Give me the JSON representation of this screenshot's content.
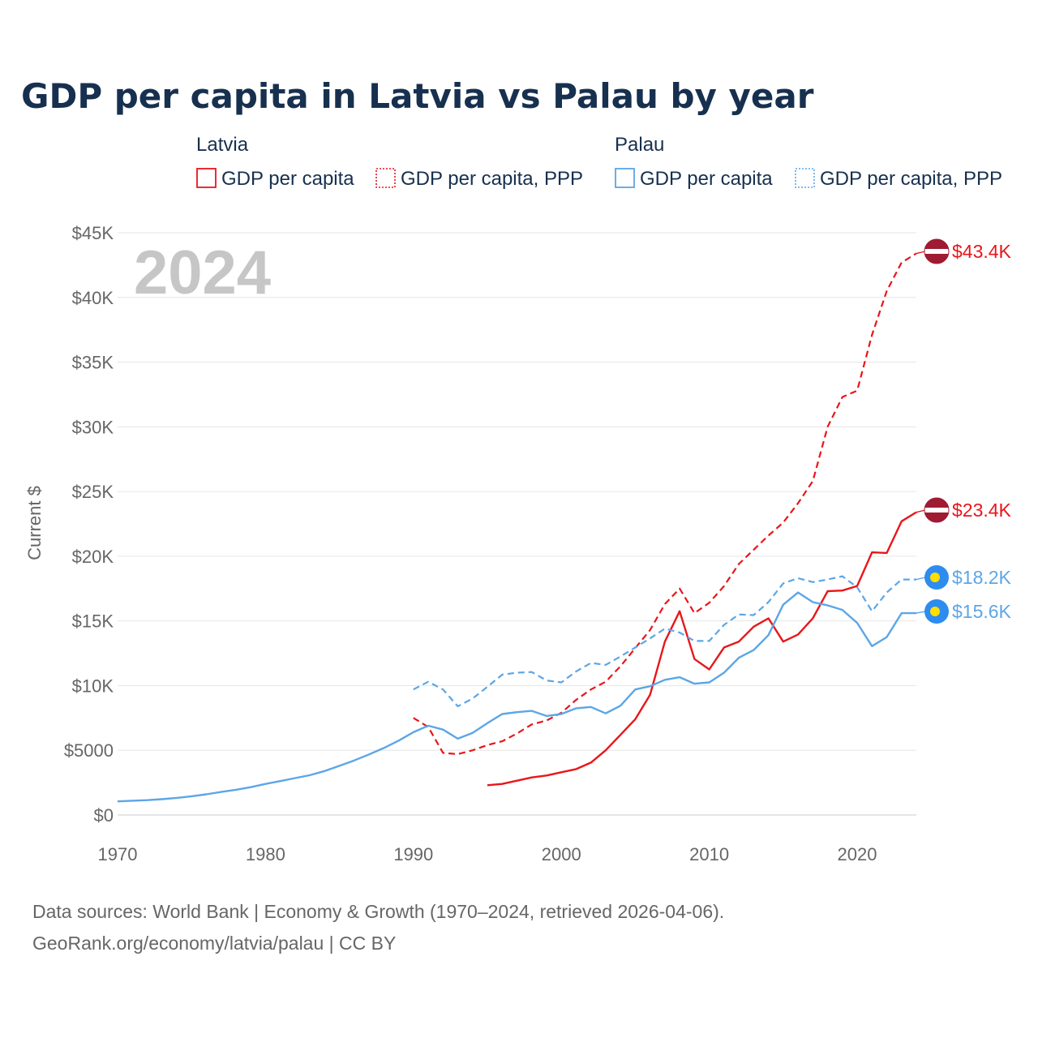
{
  "chart_data": {
    "type": "line",
    "title": "GDP per capita in Latvia vs Palau by year",
    "ylabel": "Current $",
    "xlabel": "",
    "xlim": [
      1970,
      2024
    ],
    "ylim": [
      0,
      45000
    ],
    "x_ticks": [
      1970,
      1980,
      1990,
      2000,
      2010,
      2020
    ],
    "x_tick_labels": [
      "1970",
      "1980",
      "1990",
      "2000",
      "2010",
      "2020"
    ],
    "y_ticks": [
      0,
      5000,
      10000,
      15000,
      20000,
      25000,
      30000,
      35000,
      40000,
      45000
    ],
    "y_tick_labels": [
      "$0",
      "$5000",
      "$10K",
      "$15K",
      "$20K",
      "$25K",
      "$30K",
      "$35K",
      "$40K",
      "$45K"
    ],
    "year_watermark": "2024",
    "legend": {
      "groups": [
        {
          "name": "Latvia",
          "color": "#e8161b",
          "items": [
            "GDP per capita",
            "GDP per capita, PPP"
          ]
        },
        {
          "name": "Palau",
          "color": "#5ca6e6",
          "items": [
            "GDP per capita",
            "GDP per capita, PPP"
          ]
        }
      ]
    },
    "series": [
      {
        "name": "Latvia GDP per capita",
        "country": "Latvia",
        "color": "#e8161b",
        "dashed": false,
        "x": [
          1995,
          1996,
          1997,
          1998,
          1999,
          2000,
          2001,
          2002,
          2003,
          2004,
          2005,
          2006,
          2007,
          2008,
          2009,
          2010,
          2011,
          2012,
          2013,
          2014,
          2015,
          2016,
          2017,
          2018,
          2019,
          2020,
          2021,
          2022,
          2023,
          2024
        ],
        "values": [
          2300,
          2400,
          2650,
          2900,
          3050,
          3300,
          3550,
          4050,
          5000,
          6200,
          7400,
          9300,
          13400,
          15750,
          12050,
          11250,
          12950,
          13400,
          14550,
          15200,
          13400,
          13950,
          15200,
          17300,
          17350,
          17700,
          20300,
          20250,
          22700,
          23400
        ],
        "end_label": "$23.4K"
      },
      {
        "name": "Latvia GDP per capita, PPP",
        "country": "Latvia",
        "color": "#e8161b",
        "dashed": true,
        "x": [
          1990,
          1991,
          1992,
          1993,
          1994,
          1995,
          1996,
          1997,
          1998,
          1999,
          2000,
          2001,
          2002,
          2003,
          2004,
          2005,
          2006,
          2007,
          2008,
          2009,
          2010,
          2011,
          2012,
          2013,
          2014,
          2015,
          2016,
          2017,
          2018,
          2019,
          2020,
          2021,
          2022,
          2023,
          2024
        ],
        "values": [
          7500,
          6800,
          4800,
          4700,
          5000,
          5400,
          5700,
          6300,
          7000,
          7300,
          7900,
          8900,
          9700,
          10300,
          11500,
          12900,
          14300,
          16300,
          17500,
          15600,
          16400,
          17700,
          19400,
          20500,
          21600,
          22600,
          24100,
          25800,
          30000,
          32300,
          32800,
          37100,
          40500,
          42700,
          43400
        ],
        "end_label": "$43.4K"
      },
      {
        "name": "Palau GDP per capita",
        "country": "Palau",
        "color": "#5ca6e6",
        "dashed": false,
        "x": [
          1970,
          1971,
          1972,
          1973,
          1974,
          1975,
          1976,
          1977,
          1978,
          1979,
          1980,
          1981,
          1982,
          1983,
          1984,
          1985,
          1986,
          1987,
          1988,
          1989,
          1990,
          1991,
          1992,
          1993,
          1994,
          1995,
          1996,
          1997,
          1998,
          1999,
          2000,
          2001,
          2002,
          2003,
          2004,
          2005,
          2006,
          2007,
          2008,
          2009,
          2010,
          2011,
          2012,
          2013,
          2014,
          2015,
          2016,
          2017,
          2018,
          2019,
          2020,
          2021,
          2022,
          2023,
          2024
        ],
        "values": [
          1050,
          1100,
          1150,
          1220,
          1320,
          1450,
          1600,
          1780,
          1950,
          2150,
          2400,
          2620,
          2850,
          3080,
          3400,
          3800,
          4220,
          4680,
          5180,
          5750,
          6400,
          6900,
          6600,
          5900,
          6350,
          7100,
          7800,
          7950,
          8050,
          7650,
          7800,
          8250,
          8350,
          7850,
          8450,
          9700,
          9950,
          10450,
          10650,
          10150,
          10250,
          11000,
          12150,
          12750,
          13900,
          16250,
          17200,
          16450,
          16200,
          15850,
          14850,
          13050,
          13750,
          15600,
          15600
        ],
        "end_label": "$15.6K"
      },
      {
        "name": "Palau GDP per capita, PPP",
        "country": "Palau",
        "color": "#5ca6e6",
        "dashed": true,
        "x": [
          1990,
          1991,
          1992,
          1993,
          1994,
          1995,
          1996,
          1997,
          1998,
          1999,
          2000,
          2001,
          2002,
          2003,
          2004,
          2005,
          2006,
          2007,
          2008,
          2009,
          2010,
          2011,
          2012,
          2013,
          2014,
          2015,
          2016,
          2017,
          2018,
          2019,
          2020,
          2021,
          2022,
          2023,
          2024
        ],
        "values": [
          9700,
          10300,
          9700,
          8400,
          9000,
          9900,
          10850,
          11000,
          11050,
          10400,
          10250,
          11100,
          11750,
          11600,
          12250,
          12950,
          13650,
          14400,
          14100,
          13450,
          13450,
          14700,
          15500,
          15450,
          16450,
          17900,
          18300,
          18000,
          18200,
          18450,
          17600,
          15750,
          17200,
          18200,
          18200
        ],
        "end_label": "$18.2K"
      }
    ],
    "source_line1": "Data sources: World Bank | Economy & Growth (1970–2024, retrieved 2026-04-06).",
    "source_line2": "GeoRank.org/economy/latvia/palau | CC BY"
  }
}
